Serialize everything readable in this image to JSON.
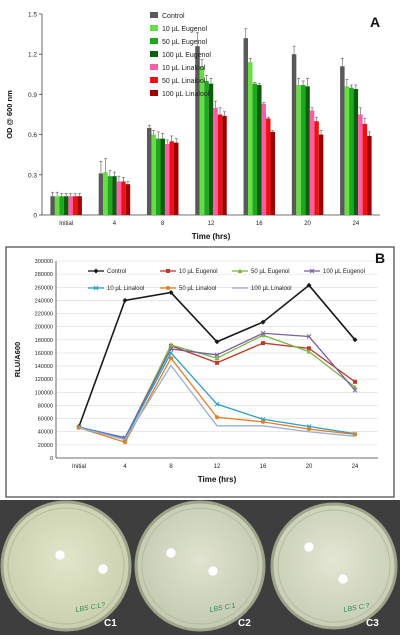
{
  "chart_data": [
    {
      "type": "bar",
      "panel_label": "A",
      "xlabel": "Time (hrs)",
      "ylabel": "OD @ 600 nm",
      "ylim": [
        0,
        1.5
      ],
      "yticks": [
        "0",
        "0.3",
        "0.6",
        "0.9",
        "1.2",
        "1.5"
      ],
      "categories": [
        "Initial",
        "4",
        "8",
        "12",
        "16",
        "20",
        "24"
      ],
      "legend_position": "top-left",
      "series": [
        {
          "name": "Control",
          "color": "#595959",
          "values": [
            0.14,
            0.31,
            0.65,
            1.26,
            1.32,
            1.2,
            1.11
          ],
          "errors": [
            0.03,
            0.09,
            0.02,
            0.1,
            0.07,
            0.06,
            0.06
          ]
        },
        {
          "name": "10 µL Eugenol",
          "color": "#66dd44",
          "values": [
            0.14,
            0.32,
            0.6,
            1.11,
            1.14,
            0.97,
            0.96
          ],
          "errors": [
            0.03,
            0.1,
            0.03,
            0.05,
            0.03,
            0.05,
            0.05
          ]
        },
        {
          "name": "50 µL Eugenol",
          "color": "#1fa81f",
          "values": [
            0.14,
            0.29,
            0.57,
            1.0,
            0.98,
            0.97,
            0.95
          ],
          "errors": [
            0.02,
            0.04,
            0.05,
            0.04,
            0.01,
            0.03,
            0.02
          ]
        },
        {
          "name": "100 µL Eugenol",
          "color": "#0a5f0a",
          "values": [
            0.14,
            0.29,
            0.57,
            0.98,
            0.97,
            0.96,
            0.94
          ],
          "errors": [
            0.02,
            0.03,
            0.04,
            0.04,
            0.01,
            0.06,
            0.03
          ]
        },
        {
          "name": "10 µL Linalool",
          "color": "#ff5ca8",
          "values": [
            0.14,
            0.25,
            0.53,
            0.8,
            0.83,
            0.78,
            0.75
          ],
          "errors": [
            0.02,
            0.04,
            0.03,
            0.05,
            0.01,
            0.02,
            0.05
          ]
        },
        {
          "name": "50 µL Linalool",
          "color": "#ee1111",
          "values": [
            0.14,
            0.25,
            0.55,
            0.75,
            0.72,
            0.7,
            0.68
          ],
          "errors": [
            0.02,
            0.03,
            0.04,
            0.05,
            0.01,
            0.03,
            0.04
          ]
        },
        {
          "name": "100 µL Linalool",
          "color": "#a00000",
          "values": [
            0.14,
            0.23,
            0.54,
            0.74,
            0.62,
            0.6,
            0.59
          ],
          "errors": [
            0.02,
            0.02,
            0.03,
            0.03,
            0.01,
            0.03,
            0.03
          ]
        }
      ]
    },
    {
      "type": "line",
      "panel_label": "B",
      "xlabel": "Time (hrs)",
      "ylabel": "RLU/A600",
      "ylim": [
        0,
        300000
      ],
      "yticks": [
        "0",
        "20000",
        "40000",
        "60000",
        "80000",
        "100000",
        "120000",
        "140000",
        "160000",
        "180000",
        "200000",
        "220000",
        "240000",
        "260000",
        "280000",
        "300000"
      ],
      "categories": [
        "Initial",
        "4",
        "8",
        "12",
        "16",
        "20",
        "24"
      ],
      "legend_position": "top",
      "series": [
        {
          "name": "Control",
          "color": "#1a1a1a",
          "marker": "diamond",
          "values": [
            48000,
            240000,
            252000,
            177000,
            207000,
            263000,
            180000
          ]
        },
        {
          "name": "10 µL Eugenol",
          "color": "#c0392b",
          "marker": "square",
          "values": [
            47000,
            30000,
            171000,
            145000,
            175000,
            167000,
            116000
          ]
        },
        {
          "name": "50 µL Eugenol",
          "color": "#7ab648",
          "marker": "triangle",
          "values": [
            47000,
            29000,
            172000,
            152000,
            187000,
            162000,
            108000
          ]
        },
        {
          "name": "100 µL Eugenol",
          "color": "#7d5fa0",
          "marker": "x",
          "values": [
            47000,
            31000,
            166000,
            157000,
            190000,
            185000,
            103000
          ]
        },
        {
          "name": "10 µL Linalool",
          "color": "#2e9fc5",
          "marker": "x",
          "values": [
            47000,
            29000,
            160000,
            82000,
            59000,
            48000,
            37000
          ]
        },
        {
          "name": "50 µL Linalool",
          "color": "#e67e22",
          "marker": "circle",
          "values": [
            46000,
            24000,
            152000,
            62000,
            55000,
            44000,
            36000
          ]
        },
        {
          "name": "100 µL Linalool",
          "color": "#9aaed6",
          "marker": "none",
          "values": [
            46000,
            28000,
            141000,
            49000,
            49000,
            40000,
            33000
          ]
        }
      ]
    }
  ],
  "panel_c": {
    "dishes": [
      {
        "label": "C1",
        "plate_text": "LBS C:L?"
      },
      {
        "label": "C2",
        "plate_text": "LBS C:1"
      },
      {
        "label": "C3",
        "plate_text": "LBS C:?"
      }
    ]
  }
}
